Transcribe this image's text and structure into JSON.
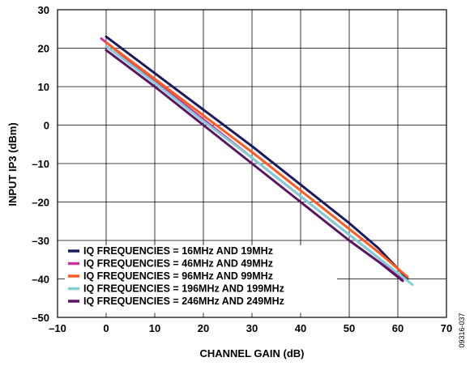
{
  "chart_data": {
    "type": "line",
    "title": "",
    "xlabel": "CHANNEL GAIN (dB)",
    "ylabel": "INPUT IP3 (dBm)",
    "xlim": [
      -10,
      70
    ],
    "ylim": [
      -50,
      30
    ],
    "x_ticks": [
      -10,
      0,
      10,
      20,
      30,
      40,
      50,
      60,
      70
    ],
    "y_ticks": [
      -50,
      -40,
      -30,
      -20,
      -10,
      0,
      10,
      20,
      30
    ],
    "x_tick_labels": [
      "–10",
      "0",
      "10",
      "20",
      "30",
      "40",
      "50",
      "60",
      "70"
    ],
    "y_tick_labels": [
      "–50",
      "–40",
      "–30",
      "–20",
      "–10",
      "0",
      "10",
      "20",
      "30"
    ],
    "grid": true,
    "legend_position": "bottom-left",
    "series": [
      {
        "name": "IQ FREQUENCIES = 16MHz AND 19MHz",
        "color": "#1a1a5e",
        "x": [
          0,
          10,
          20,
          30,
          40,
          42,
          50,
          56,
          62
        ],
        "y": [
          23,
          13.5,
          4,
          -5.5,
          -15.5,
          -17.5,
          -25.5,
          -32,
          -40
        ]
      },
      {
        "name": "IQ FREQUENCIES = 46MHz AND 49MHz",
        "color": "#cc3399",
        "x": [
          -1,
          10,
          20,
          30,
          40,
          50,
          56,
          61
        ],
        "y": [
          22.5,
          11.5,
          1.5,
          -8.5,
          -18.5,
          -28.5,
          -34.5,
          -40
        ]
      },
      {
        "name": "IQ FREQUENCIES = 96MHz AND 99MHz",
        "color": "#ff5a1f",
        "x": [
          0,
          10,
          20,
          30,
          40,
          50,
          56,
          62
        ],
        "y": [
          21.5,
          12,
          2.5,
          -7,
          -17,
          -27,
          -33,
          -39.5
        ]
      },
      {
        "name": "IQ FREQUENCIES = 196MHz AND 199MHz",
        "color": "#7fcfd4",
        "x": [
          0,
          10,
          20,
          30,
          40,
          50,
          56,
          63
        ],
        "y": [
          20.5,
          11,
          1,
          -8.5,
          -18.5,
          -28.5,
          -34.5,
          -41.5
        ]
      },
      {
        "name": "IQ FREQUENCIES = 246MHz AND 249MHz",
        "color": "#5a1464",
        "x": [
          0,
          10,
          20,
          30,
          40,
          50,
          56,
          61
        ],
        "y": [
          19.5,
          10,
          0,
          -10,
          -20,
          -30,
          -35.5,
          -40.5
        ]
      }
    ]
  },
  "figure_id": "09316-037"
}
